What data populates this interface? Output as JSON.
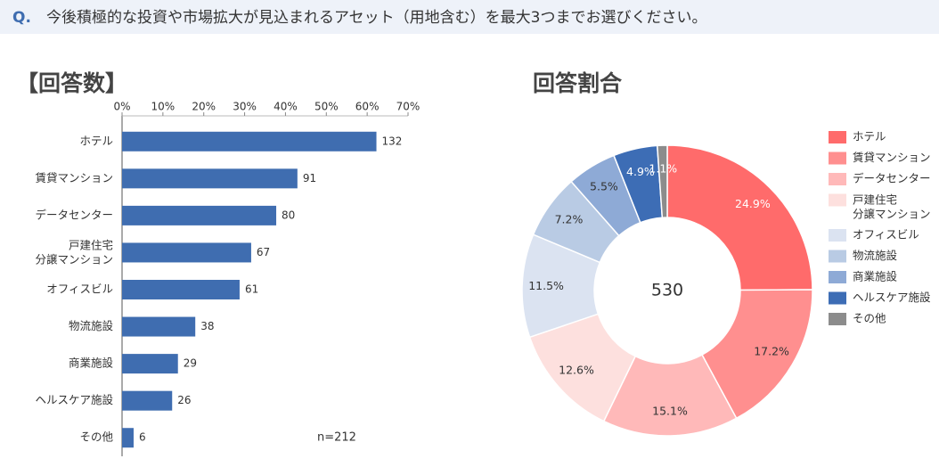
{
  "header": {
    "marker": "Q.",
    "question": "今後積極的な投資や市場拡大が見込まれるアセット（用地含む）を最大3つまでお選びください。"
  },
  "chart_data": [
    {
      "type": "hbar",
      "title": "【回答数】",
      "annotation": "n=212",
      "color": "#3f6db0",
      "categories": [
        "ホテル",
        "賃貸マンション",
        "データセンター",
        "戸建住宅\n分譲マンション",
        "オフィスビル",
        "物流施設",
        "商業施設",
        "ヘルスケア施設",
        "その他"
      ],
      "values": [
        132,
        91,
        80,
        67,
        61,
        38,
        29,
        26,
        6
      ],
      "xlim": [
        0,
        148.4
      ],
      "xticks": [
        {
          "value": 0,
          "label": "0%"
        },
        {
          "value": 21.2,
          "label": "10%"
        },
        {
          "value": 42.4,
          "label": "20%"
        },
        {
          "value": 63.6,
          "label": "30%"
        },
        {
          "value": 84.8,
          "label": "40%"
        },
        {
          "value": 106,
          "label": "50%"
        },
        {
          "value": 127.2,
          "label": "60%"
        },
        {
          "value": 148.4,
          "label": "70%"
        }
      ]
    },
    {
      "type": "donut",
      "title": "回答割合",
      "center_label": "530",
      "categories": [
        "ホテル",
        "賃貸マンション",
        "データセンター",
        "戸建住宅\n分譲マンション",
        "オフィスビル",
        "物流施設",
        "商業施設",
        "ヘルスケア施設",
        "その他"
      ],
      "values": [
        24.9,
        17.2,
        15.1,
        12.6,
        11.5,
        7.2,
        5.5,
        4.9,
        1.1
      ],
      "value_labels": [
        "24.9%",
        "17.2%",
        "15.1%",
        "12.6%",
        "11.5%",
        "7.2%",
        "5.5%",
        "4.9%",
        "1.1%"
      ],
      "colors": [
        "#ff6b6b",
        "#ff8f8f",
        "#ffb9b9",
        "#fde0de",
        "#dbe3f1",
        "#b9cbe4",
        "#8eaad6",
        "#3d6db5",
        "#8c8c8c"
      ],
      "legend": "right"
    }
  ]
}
